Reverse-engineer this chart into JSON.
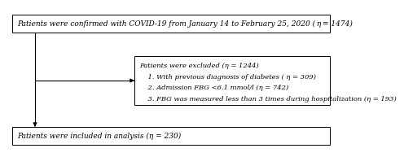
{
  "top_box": {
    "text": "Patients were confirmed with COVID-19 from January 14 to February 25, 2020 ( η = 1474)",
    "fontsize": 6.5
  },
  "exclude_box": {
    "title": "Patients were excluded (η = 1244)",
    "lines": [
      "    1. With previous diagnosis of diabetes ( η = 309)",
      "    2. Admission FBG <6.1 mmol/l (η = 742)",
      "    3. FBG was measured less than 3 times during hospitalization (η = 193)"
    ],
    "fontsize": 6.0
  },
  "bottom_box": {
    "text": "Patients were included in analysis (η = 230)",
    "fontsize": 6.5
  },
  "box_color": "#000000",
  "box_facecolor": "#ffffff",
  "bg_color": "#ffffff",
  "arrow_color": "#000000"
}
